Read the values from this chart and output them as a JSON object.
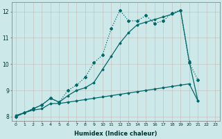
{
  "xlabel": "Humidex (Indice chaleur)",
  "bg_color": "#cce8e8",
  "line_color": "#006868",
  "x_values": [
    0,
    1,
    2,
    3,
    4,
    5,
    6,
    7,
    8,
    9,
    10,
    11,
    12,
    13,
    14,
    15,
    16,
    17,
    18,
    19,
    20,
    21,
    22,
    23
  ],
  "series_flat": [
    8.05,
    8.15,
    8.25,
    8.3,
    8.5,
    8.5,
    8.55,
    8.6,
    8.65,
    8.7,
    8.75,
    8.8,
    8.85,
    8.9,
    8.95,
    9.0,
    9.05,
    9.1,
    9.15,
    9.2,
    9.25,
    8.6,
    null,
    null
  ],
  "series_diag": [
    8.0,
    8.15,
    8.3,
    8.45,
    8.7,
    8.55,
    8.8,
    9.0,
    9.1,
    9.3,
    9.8,
    10.3,
    10.8,
    11.2,
    11.5,
    11.6,
    11.7,
    11.8,
    11.9,
    12.05,
    10.1,
    8.6,
    null,
    null
  ],
  "series_wavy": [
    8.0,
    8.15,
    8.3,
    8.45,
    8.7,
    8.55,
    9.0,
    9.2,
    9.5,
    10.05,
    10.35,
    11.35,
    12.05,
    11.65,
    11.65,
    11.85,
    11.55,
    11.65,
    11.95,
    12.05,
    10.05,
    9.4,
    null,
    null
  ],
  "ylim": [
    7.85,
    12.35
  ],
  "xlim": [
    -0.5,
    23.5
  ],
  "yticks": [
    8,
    9,
    10,
    11,
    12
  ],
  "xticks": [
    0,
    1,
    2,
    3,
    4,
    5,
    6,
    7,
    8,
    9,
    10,
    11,
    12,
    13,
    14,
    15,
    16,
    17,
    18,
    19,
    20,
    21,
    22,
    23
  ]
}
